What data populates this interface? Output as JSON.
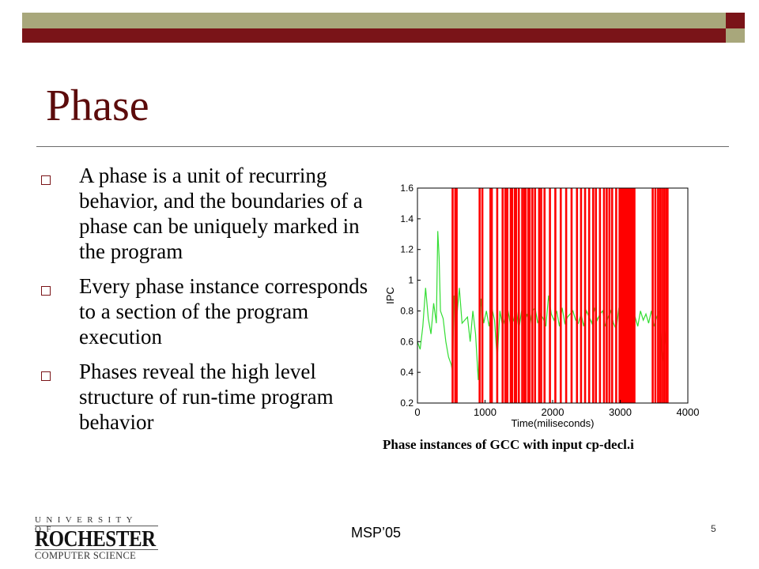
{
  "slide": {
    "title": "Phase",
    "bullets": [
      "A phase is a unit of recurring behavior, and the boundaries of a phase can be uniquely marked in the program",
      "Every phase instance corresponds to a section of the program execution",
      "Phases reveal the high level structure of run-time program behavior"
    ],
    "caption": "Phase instances of GCC with input cp-decl.i",
    "footer": "MSP’05",
    "page_number": "5",
    "logo": {
      "line1": "UNIVERSITY OF",
      "line2": "ROCHESTER",
      "line3": "COMPUTER SCIENCE"
    }
  },
  "colors": {
    "title": "#5c0b0b",
    "bar_olive": "#a8a77b",
    "bar_maroon": "#7a1418",
    "boundary_lines": "#ff0000",
    "ipc_trace": "#33dd33"
  },
  "chart_data": {
    "type": "line",
    "xlabel": "Time(miliseconds)",
    "ylabel": "IPC",
    "xlim": [
      0,
      4000
    ],
    "ylim": [
      0.2,
      1.6
    ],
    "x_ticks": [
      0,
      1000,
      2000,
      3000,
      4000
    ],
    "y_ticks": [
      0.2,
      0.4,
      0.6,
      0.8,
      1,
      1.2,
      1.4,
      1.6
    ],
    "y_tick_labels": [
      "0.2",
      "0.4",
      "0.6",
      "0.8",
      "1",
      "1.2",
      "1.4",
      "1.6"
    ],
    "ipc_series": {
      "x": [
        0,
        40,
        80,
        120,
        160,
        200,
        240,
        280,
        300,
        320,
        340,
        380,
        420,
        460,
        500,
        520,
        540,
        580,
        620,
        660,
        700,
        740,
        780,
        820,
        860,
        900,
        940,
        980,
        1020,
        1060,
        1100,
        1140,
        1180,
        1220,
        1260,
        1300,
        1340,
        1380,
        1420,
        1460,
        1500,
        1540,
        1580,
        1620,
        1660,
        1700,
        1740,
        1780,
        1820,
        1860,
        1900,
        1940,
        1980,
        2020,
        2060,
        2100,
        2140,
        2180,
        2220,
        2260,
        2300,
        2340,
        2380,
        2420,
        2460,
        2500,
        2540,
        2580,
        2620,
        2660,
        2700,
        2740,
        2780,
        2820,
        2860,
        2900,
        2940,
        2980,
        3020,
        3060,
        3100,
        3140,
        3180,
        3220,
        3260,
        3300,
        3340,
        3380,
        3420,
        3460,
        3500,
        3540,
        3580,
        3620,
        3660,
        3700
      ],
      "y": [
        0.6,
        0.55,
        0.7,
        0.95,
        0.75,
        0.65,
        0.85,
        0.72,
        1.32,
        1.15,
        0.8,
        0.75,
        0.6,
        0.5,
        0.45,
        0.4,
        0.9,
        0.75,
        0.95,
        0.72,
        0.74,
        0.76,
        0.6,
        0.8,
        0.65,
        0.35,
        0.88,
        0.72,
        0.8,
        0.7,
        0.82,
        0.74,
        0.48,
        0.8,
        0.7,
        0.76,
        0.8,
        0.7,
        0.74,
        0.82,
        0.68,
        0.8,
        0.72,
        0.78,
        0.7,
        0.8,
        0.82,
        0.72,
        0.78,
        0.75,
        0.7,
        0.9,
        0.78,
        0.74,
        0.8,
        0.7,
        0.82,
        0.72,
        0.76,
        0.78,
        0.8,
        0.74,
        0.72,
        0.78,
        0.7,
        0.8,
        0.76,
        0.72,
        0.82,
        0.74,
        0.78,
        0.8,
        0.7,
        0.76,
        0.8,
        0.72,
        0.68,
        0.82,
        0.74,
        0.5,
        0.78,
        0.72,
        0.8,
        0.76,
        0.7,
        0.8,
        0.74,
        0.78,
        0.72,
        0.8,
        0.7,
        0.76,
        0.8,
        0.45,
        0.6,
        0.82
      ]
    },
    "phase_boundaries": [
      520,
      560,
      580,
      920,
      960,
      1080,
      1100,
      1180,
      1260,
      1300,
      1330,
      1380,
      1400,
      1440,
      1460,
      1500,
      1550,
      1580,
      1600,
      1640,
      1660,
      1700,
      1740,
      1800,
      1830,
      1880,
      1960,
      2040,
      2120,
      2200,
      2280,
      2360,
      2420,
      2480,
      2540,
      2600,
      2640,
      2700,
      2760,
      2800,
      2840,
      2880,
      2940,
      2990,
      3010,
      3030,
      3050,
      3070,
      3090,
      3110,
      3130,
      3150,
      3170,
      3190,
      3210,
      3480,
      3520,
      3560,
      3590,
      3620,
      3650,
      3680,
      3700
    ]
  }
}
